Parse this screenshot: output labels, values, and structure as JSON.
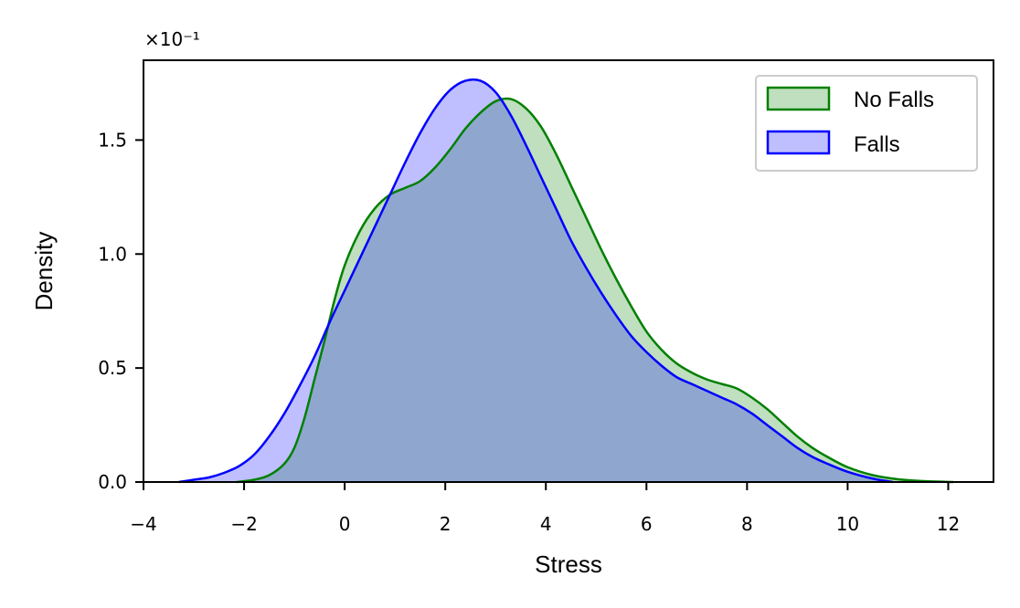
{
  "chart_data": {
    "type": "area",
    "title": "",
    "xlabel": "Stress",
    "ylabel": "Density",
    "y_scale_note": "×10⁻¹",
    "xlim": [
      -4,
      12.9
    ],
    "ylim": [
      0,
      1.85
    ],
    "xticks": [
      -4,
      -2,
      0,
      2,
      4,
      6,
      8,
      10,
      12
    ],
    "xtick_labels": [
      "−4",
      "−2",
      "0",
      "2",
      "4",
      "6",
      "8",
      "10",
      "12"
    ],
    "yticks": [
      0,
      0.5,
      1.0,
      1.5
    ],
    "ytick_labels": [
      "0.0",
      "0.5",
      "1.0",
      "1.5"
    ],
    "legend_position": "top-right",
    "series": [
      {
        "name": "No Falls",
        "color": "#008000",
        "fill": "#008000",
        "x": [
          -2.15,
          -1.8,
          -1.5,
          -1.2,
          -1.0,
          -0.8,
          -0.6,
          -0.4,
          -0.2,
          0.0,
          0.3,
          0.6,
          0.9,
          1.2,
          1.5,
          1.8,
          2.1,
          2.4,
          2.7,
          3.0,
          3.3,
          3.6,
          3.9,
          4.2,
          4.5,
          4.8,
          5.1,
          5.4,
          5.7,
          6.0,
          6.3,
          6.6,
          6.9,
          7.2,
          7.5,
          7.8,
          8.1,
          8.4,
          8.7,
          9.0,
          9.3,
          9.6,
          10.0,
          10.5,
          11.0,
          11.5,
          12.1
        ],
        "y": [
          0.0,
          0.01,
          0.03,
          0.08,
          0.15,
          0.28,
          0.45,
          0.62,
          0.8,
          0.95,
          1.1,
          1.2,
          1.26,
          1.29,
          1.32,
          1.38,
          1.46,
          1.55,
          1.62,
          1.67,
          1.68,
          1.64,
          1.56,
          1.44,
          1.3,
          1.16,
          1.02,
          0.89,
          0.77,
          0.66,
          0.58,
          0.52,
          0.48,
          0.45,
          0.43,
          0.41,
          0.37,
          0.32,
          0.26,
          0.2,
          0.15,
          0.11,
          0.065,
          0.03,
          0.012,
          0.004,
          0.0
        ]
      },
      {
        "name": "Falls",
        "color": "#0000ff",
        "fill": "#0000ff",
        "x": [
          -3.3,
          -3.0,
          -2.7,
          -2.4,
          -2.1,
          -1.8,
          -1.5,
          -1.2,
          -0.9,
          -0.6,
          -0.3,
          0.0,
          0.3,
          0.6,
          0.9,
          1.2,
          1.5,
          1.8,
          2.1,
          2.4,
          2.7,
          3.0,
          3.3,
          3.6,
          3.9,
          4.2,
          4.5,
          4.8,
          5.1,
          5.4,
          5.7,
          6.0,
          6.3,
          6.6,
          6.9,
          7.2,
          7.5,
          7.8,
          8.1,
          8.4,
          8.7,
          9.0,
          9.3,
          9.6,
          10.0,
          10.5,
          10.9
        ],
        "y": [
          0.0,
          0.01,
          0.02,
          0.04,
          0.07,
          0.12,
          0.2,
          0.3,
          0.42,
          0.55,
          0.7,
          0.84,
          0.98,
          1.12,
          1.26,
          1.4,
          1.53,
          1.64,
          1.72,
          1.76,
          1.76,
          1.71,
          1.61,
          1.48,
          1.34,
          1.2,
          1.06,
          0.94,
          0.83,
          0.73,
          0.64,
          0.57,
          0.51,
          0.46,
          0.43,
          0.4,
          0.37,
          0.34,
          0.3,
          0.25,
          0.2,
          0.15,
          0.11,
          0.08,
          0.045,
          0.015,
          0.0
        ]
      }
    ]
  }
}
